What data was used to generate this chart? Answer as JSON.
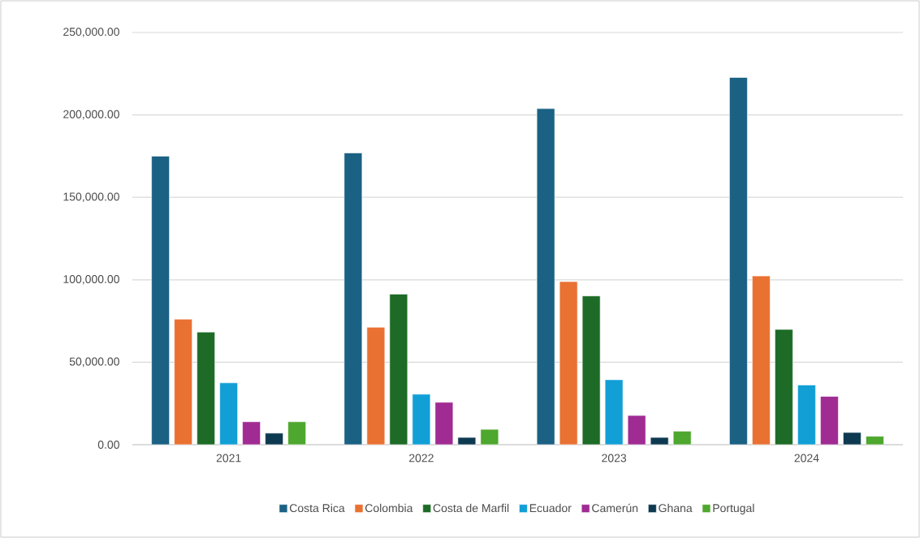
{
  "chart_data": {
    "type": "bar",
    "categories": [
      "2021",
      "2022",
      "2023",
      "2024"
    ],
    "series": [
      {
        "name": "Costa Rica",
        "color": "#1a6184",
        "values": [
          175000,
          176900,
          203800,
          222700
        ]
      },
      {
        "name": "Colombia",
        "color": "#e97132",
        "values": [
          76100,
          71200,
          98900,
          102300
        ]
      },
      {
        "name": "Costa de Marfil",
        "color": "#1d6b26",
        "values": [
          68300,
          91300,
          90200,
          69900
        ]
      },
      {
        "name": "Ecuador",
        "color": "#119fd6",
        "values": [
          37500,
          30600,
          39400,
          36200
        ]
      },
      {
        "name": "Camerún",
        "color": "#a02b93",
        "values": [
          13900,
          25700,
          17700,
          29300
        ]
      },
      {
        "name": "Ghana",
        "color": "#0e3a51",
        "values": [
          7000,
          4400,
          4400,
          7400
        ]
      },
      {
        "name": "Portugal",
        "color": "#4ea72e",
        "values": [
          13900,
          9300,
          8200,
          5100
        ]
      }
    ],
    "ylim": [
      0,
      250000
    ],
    "yticks": [
      {
        "value": 0,
        "label": "0.00"
      },
      {
        "value": 50000,
        "label": "50,000.00"
      },
      {
        "value": 100000,
        "label": "100,000.00"
      },
      {
        "value": 150000,
        "label": "150,000.00"
      },
      {
        "value": 200000,
        "label": "200,000.00"
      },
      {
        "value": 250000,
        "label": "250,000.00"
      }
    ],
    "grid": "y",
    "legend": "bottom"
  }
}
